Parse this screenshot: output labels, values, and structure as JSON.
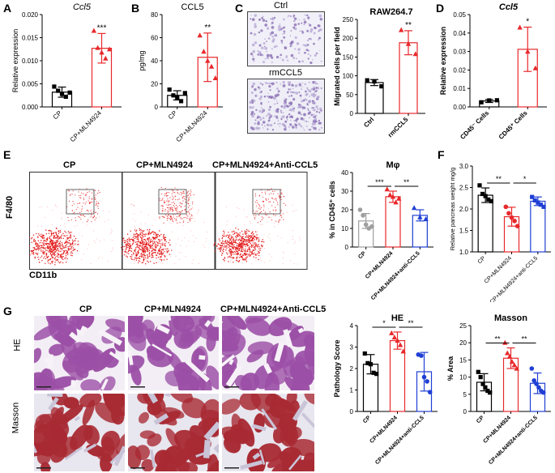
{
  "panels": {
    "A": "A",
    "B": "B",
    "C": "C",
    "D": "D",
    "E": "E",
    "F": "F",
    "G": "G"
  },
  "colors": {
    "black": "#000000",
    "red": "#e8282b",
    "gray": "#9e9e9e",
    "blue": "#1f3fd4",
    "he_tissue": "#9b4fa6",
    "masson_tissue": "#a82a33"
  },
  "labels": {
    "cp": "CP",
    "cp_mln": "CP+MLN4924",
    "cp_mln_anti": "CP+MLN4924+Anti-CCL5",
    "cp_mln_anti_lower": "CP+MLN4924+anti-CCL5",
    "ctrl": "Ctrl",
    "rmccl5": "rmCCL5",
    "cd45neg": "CD45⁻ Cells",
    "cd45pos": "CD45⁺ Cells",
    "he": "HE",
    "masson": "Masson",
    "f480": "F4/80",
    "cd11b": "CD11b",
    "raw": "RAW264.7"
  },
  "chart_data": [
    {
      "panel": "A",
      "type": "bar",
      "title": "Ccl5",
      "ylabel": "Relative expression",
      "ylim": [
        0,
        0.02
      ],
      "yticks": [
        "0.000",
        "0.005",
        "0.010",
        "0.015",
        "0.020"
      ],
      "categories": [
        "CP",
        "CP+MLN4924"
      ],
      "values": [
        0.0032,
        0.0127
      ],
      "errors": [
        0.0011,
        0.0032
      ],
      "points": [
        [
          0.0044,
          0.0035,
          0.0028,
          0.0022,
          0.0031
        ],
        [
          0.0165,
          0.0128,
          0.0118,
          0.0105,
          0.0125
        ]
      ],
      "sig": [
        "",
        "***"
      ]
    },
    {
      "panel": "B",
      "type": "bar",
      "title": "CCL5",
      "ylabel": "pg/mg",
      "ylim": [
        0,
        80
      ],
      "yticks": [
        "0",
        "20",
        "40",
        "60",
        "80"
      ],
      "categories": [
        "CP",
        "CP+MLN4924"
      ],
      "values": [
        10,
        43
      ],
      "errors": [
        4,
        21
      ],
      "points": [
        [
          15,
          10,
          8,
          5,
          12
        ],
        [
          62,
          48,
          40,
          35,
          25
        ]
      ],
      "sig": [
        "",
        "**"
      ]
    },
    {
      "panel": "C",
      "type": "bar",
      "title": "RAW264.7",
      "ylabel": "Migrated cells per field",
      "ylim": [
        0,
        250
      ],
      "yticks": [
        "0",
        "50",
        "100",
        "150",
        "200",
        "250"
      ],
      "categories": [
        "Ctrl",
        "rmCCL5"
      ],
      "values": [
        82,
        188
      ],
      "errors": [
        8,
        32
      ],
      "points": [
        [
          88,
          85,
          72
        ],
        [
          222,
          185,
          158
        ]
      ],
      "sig": [
        "",
        "**"
      ]
    },
    {
      "panel": "D",
      "type": "bar",
      "title": "Ccl5",
      "ylabel": "Relative expression",
      "ylim": [
        0,
        0.05
      ],
      "yticks": [
        "0.00",
        "0.01",
        "0.02",
        "0.03",
        "0.04",
        "0.05"
      ],
      "categories": [
        "CD45⁻ Cells",
        "CD45⁺ Cells"
      ],
      "values": [
        0.0032,
        0.0312
      ],
      "errors": [
        0.0008,
        0.012
      ],
      "points": [
        [
          0.0025,
          0.0035,
          0.0036
        ],
        [
          0.043,
          0.03,
          0.021
        ]
      ],
      "sig": [
        "",
        "*"
      ]
    },
    {
      "panel": "E",
      "type": "bar",
      "title": "Mφ",
      "ylabel": "% in CD45⁺ cells",
      "ylim": [
        0,
        40
      ],
      "yticks": [
        "0",
        "10",
        "20",
        "30",
        "40"
      ],
      "categories": [
        "CP",
        "CP+MLN4924",
        "CP+MLN4924+anti-CCL5"
      ],
      "values": [
        14,
        27,
        17
      ],
      "errors": [
        4,
        3,
        3
      ],
      "points": [
        [
          20,
          17,
          12,
          10,
          11
        ],
        [
          31,
          28,
          27,
          24,
          26
        ],
        [
          21,
          16,
          15
        ]
      ],
      "sig": [
        "***",
        "**"
      ]
    },
    {
      "panel": "F",
      "type": "bar",
      "title": "",
      "ylabel": "Relative pancreas weight mg/g",
      "ylim": [
        1.0,
        3.0
      ],
      "yticks": [
        "1.0",
        "1.5",
        "2.0",
        "2.5",
        "3.0"
      ],
      "categories": [
        "CP",
        "CP+MLN4924",
        "CP+MLN4924+anti-CCL5"
      ],
      "values": [
        2.32,
        1.82,
        2.18
      ],
      "errors": [
        0.17,
        0.22,
        0.1
      ],
      "points": [
        [
          2.55,
          2.35,
          2.3,
          2.22,
          2.18
        ],
        [
          2.05,
          1.9,
          1.8,
          1.72,
          1.6
        ],
        [
          2.28,
          2.2,
          2.15,
          2.1,
          2.05
        ]
      ],
      "sig": [
        "**",
        "*"
      ]
    },
    {
      "panel": "G1",
      "type": "bar",
      "title": "HE",
      "ylabel": "Pathology Score",
      "ylim": [
        0,
        4
      ],
      "yticks": [
        "0",
        "1",
        "2",
        "3",
        "4"
      ],
      "categories": [
        "CP",
        "CP+MLN4924",
        "CP+MLN4924+anti-CCL5"
      ],
      "values": [
        2.2,
        3.3,
        1.85
      ],
      "errors": [
        0.45,
        0.4,
        0.9
      ],
      "points": [
        [
          2.7,
          2.25,
          2.2,
          1.8,
          1.75
        ],
        [
          3.65,
          3.45,
          3.3,
          3.1,
          2.8
        ],
        [
          2.65,
          2.6,
          1.6,
          1.4,
          0.9
        ]
      ],
      "sig": [
        "*",
        "**"
      ]
    },
    {
      "panel": "G2",
      "type": "bar",
      "title": "Masson",
      "ylabel": "% Area",
      "ylim": [
        0,
        25
      ],
      "yticks": [
        "0",
        "5",
        "10",
        "15",
        "20",
        "25"
      ],
      "categories": [
        "CP",
        "CP+MLN4924",
        "CP+MLN4924+anti-CCL5"
      ],
      "values": [
        8.5,
        15.5,
        8.2
      ],
      "errors": [
        2.5,
        3,
        3
      ],
      "points": [
        [
          11.5,
          10,
          8,
          7,
          6,
          5.5
        ],
        [
          20,
          17,
          16,
          14.5,
          13.5,
          12.5
        ],
        [
          12.5,
          9,
          8,
          7,
          6,
          5.5
        ]
      ],
      "sig": [
        "**",
        "**"
      ]
    }
  ]
}
